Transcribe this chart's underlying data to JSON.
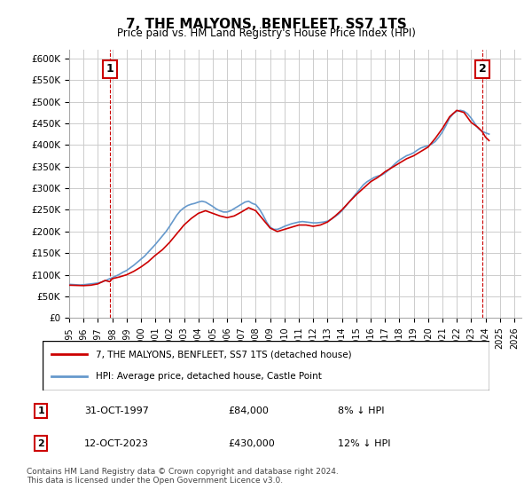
{
  "title": "7, THE MALYONS, BENFLEET, SS7 1TS",
  "subtitle": "Price paid vs. HM Land Registry's House Price Index (HPI)",
  "ylabel_ticks": [
    "£0",
    "£50K",
    "£100K",
    "£150K",
    "£200K",
    "£250K",
    "£300K",
    "£350K",
    "£400K",
    "£450K",
    "£500K",
    "£550K",
    "£600K"
  ],
  "ytick_values": [
    0,
    50000,
    100000,
    150000,
    200000,
    250000,
    300000,
    350000,
    400000,
    450000,
    500000,
    550000,
    600000
  ],
  "ylim": [
    0,
    620000
  ],
  "xlabel_years": [
    "1995",
    "1996",
    "1997",
    "1998",
    "1999",
    "2000",
    "2001",
    "2002",
    "2003",
    "2004",
    "2005",
    "2006",
    "2007",
    "2008",
    "2009",
    "2010",
    "2011",
    "2012",
    "2013",
    "2014",
    "2015",
    "2016",
    "2017",
    "2018",
    "2019",
    "2020",
    "2021",
    "2022",
    "2023",
    "2024",
    "2025",
    "2026"
  ],
  "sale1_year": 1997.83,
  "sale1_price": 84000,
  "sale1_label": "1",
  "sale2_year": 2023.79,
  "sale2_price": 430000,
  "sale2_label": "2",
  "line_color_price": "#cc0000",
  "line_color_hpi": "#6699cc",
  "annotation_box_color": "#cc0000",
  "grid_color": "#cccccc",
  "background_color": "#ffffff",
  "legend_label_price": "7, THE MALYONS, BENFLEET, SS7 1TS (detached house)",
  "legend_label_hpi": "HPI: Average price, detached house, Castle Point",
  "table_row1": "1    31-OCT-1997         £84,000         8% ↓ HPI",
  "table_row2": "2    12-OCT-2023         £430,000       12% ↓ HPI",
  "footnote": "Contains HM Land Registry data © Crown copyright and database right 2024.\nThis data is licensed under the Open Government Licence v3.0.",
  "hpi_years": [
    1995.0,
    1995.25,
    1995.5,
    1995.75,
    1996.0,
    1996.25,
    1996.5,
    1996.75,
    1997.0,
    1997.25,
    1997.5,
    1997.75,
    1998.0,
    1998.25,
    1998.5,
    1998.75,
    1999.0,
    1999.25,
    1999.5,
    1999.75,
    2000.0,
    2000.25,
    2000.5,
    2000.75,
    2001.0,
    2001.25,
    2001.5,
    2001.75,
    2002.0,
    2002.25,
    2002.5,
    2002.75,
    2003.0,
    2003.25,
    2003.5,
    2003.75,
    2004.0,
    2004.25,
    2004.5,
    2004.75,
    2005.0,
    2005.25,
    2005.5,
    2005.75,
    2006.0,
    2006.25,
    2006.5,
    2006.75,
    2007.0,
    2007.25,
    2007.5,
    2007.75,
    2008.0,
    2008.25,
    2008.5,
    2008.75,
    2009.0,
    2009.25,
    2009.5,
    2009.75,
    2010.0,
    2010.25,
    2010.5,
    2010.75,
    2011.0,
    2011.25,
    2011.5,
    2011.75,
    2012.0,
    2012.25,
    2012.5,
    2012.75,
    2013.0,
    2013.25,
    2013.5,
    2013.75,
    2014.0,
    2014.25,
    2014.5,
    2014.75,
    2015.0,
    2015.25,
    2015.5,
    2015.75,
    2016.0,
    2016.25,
    2016.5,
    2016.75,
    2017.0,
    2017.25,
    2017.5,
    2017.75,
    2018.0,
    2018.25,
    2018.5,
    2018.75,
    2019.0,
    2019.25,
    2019.5,
    2019.75,
    2020.0,
    2020.25,
    2020.5,
    2020.75,
    2021.0,
    2021.25,
    2021.5,
    2021.75,
    2022.0,
    2022.25,
    2022.5,
    2022.75,
    2023.0,
    2023.25,
    2023.5,
    2023.75,
    2024.0,
    2024.25
  ],
  "hpi_values": [
    78000,
    77500,
    77000,
    76500,
    77000,
    78000,
    79000,
    80000,
    81000,
    83000,
    86000,
    90000,
    93000,
    97000,
    101000,
    106000,
    110000,
    116000,
    122000,
    129000,
    136000,
    143000,
    152000,
    161000,
    170000,
    180000,
    190000,
    200000,
    212000,
    225000,
    238000,
    248000,
    255000,
    260000,
    263000,
    265000,
    268000,
    270000,
    268000,
    263000,
    258000,
    252000,
    248000,
    245000,
    245000,
    248000,
    253000,
    258000,
    263000,
    268000,
    270000,
    265000,
    262000,
    252000,
    238000,
    222000,
    210000,
    205000,
    205000,
    208000,
    212000,
    215000,
    218000,
    220000,
    222000,
    223000,
    222000,
    221000,
    220000,
    220000,
    221000,
    222000,
    224000,
    228000,
    234000,
    240000,
    248000,
    258000,
    268000,
    278000,
    288000,
    298000,
    308000,
    315000,
    320000,
    325000,
    328000,
    330000,
    335000,
    342000,
    350000,
    358000,
    365000,
    370000,
    375000,
    378000,
    382000,
    388000,
    393000,
    396000,
    398000,
    402000,
    408000,
    418000,
    430000,
    445000,
    462000,
    472000,
    478000,
    480000,
    478000,
    472000,
    462000,
    450000,
    438000,
    432000,
    428000,
    425000
  ],
  "price_years": [
    1995.0,
    1995.5,
    1996.0,
    1996.5,
    1997.0,
    1997.5,
    1997.83,
    1998.0,
    1998.5,
    1999.0,
    1999.5,
    2000.0,
    2000.5,
    2001.0,
    2001.5,
    2002.0,
    2002.5,
    2003.0,
    2003.5,
    2004.0,
    2004.5,
    2005.0,
    2005.5,
    2006.0,
    2006.5,
    2007.0,
    2007.5,
    2008.0,
    2008.5,
    2009.0,
    2009.5,
    2010.0,
    2010.5,
    2011.0,
    2011.5,
    2012.0,
    2012.5,
    2013.0,
    2013.5,
    2014.0,
    2014.5,
    2015.0,
    2015.5,
    2016.0,
    2016.5,
    2017.0,
    2017.5,
    2018.0,
    2018.5,
    2019.0,
    2019.5,
    2020.0,
    2020.5,
    2021.0,
    2021.5,
    2022.0,
    2022.5,
    2023.0,
    2023.5,
    2023.79,
    2024.0,
    2024.25
  ],
  "price_values": [
    76000,
    75500,
    75000,
    76000,
    79000,
    87000,
    84000,
    91000,
    95000,
    100000,
    108000,
    118000,
    130000,
    145000,
    158000,
    175000,
    195000,
    215000,
    230000,
    242000,
    248000,
    242000,
    236000,
    232000,
    236000,
    245000,
    255000,
    248000,
    228000,
    208000,
    200000,
    205000,
    210000,
    215000,
    215000,
    212000,
    215000,
    222000,
    235000,
    250000,
    268000,
    285000,
    300000,
    315000,
    325000,
    338000,
    348000,
    358000,
    368000,
    375000,
    385000,
    395000,
    415000,
    438000,
    465000,
    480000,
    475000,
    452000,
    440000,
    430000,
    418000,
    410000
  ]
}
